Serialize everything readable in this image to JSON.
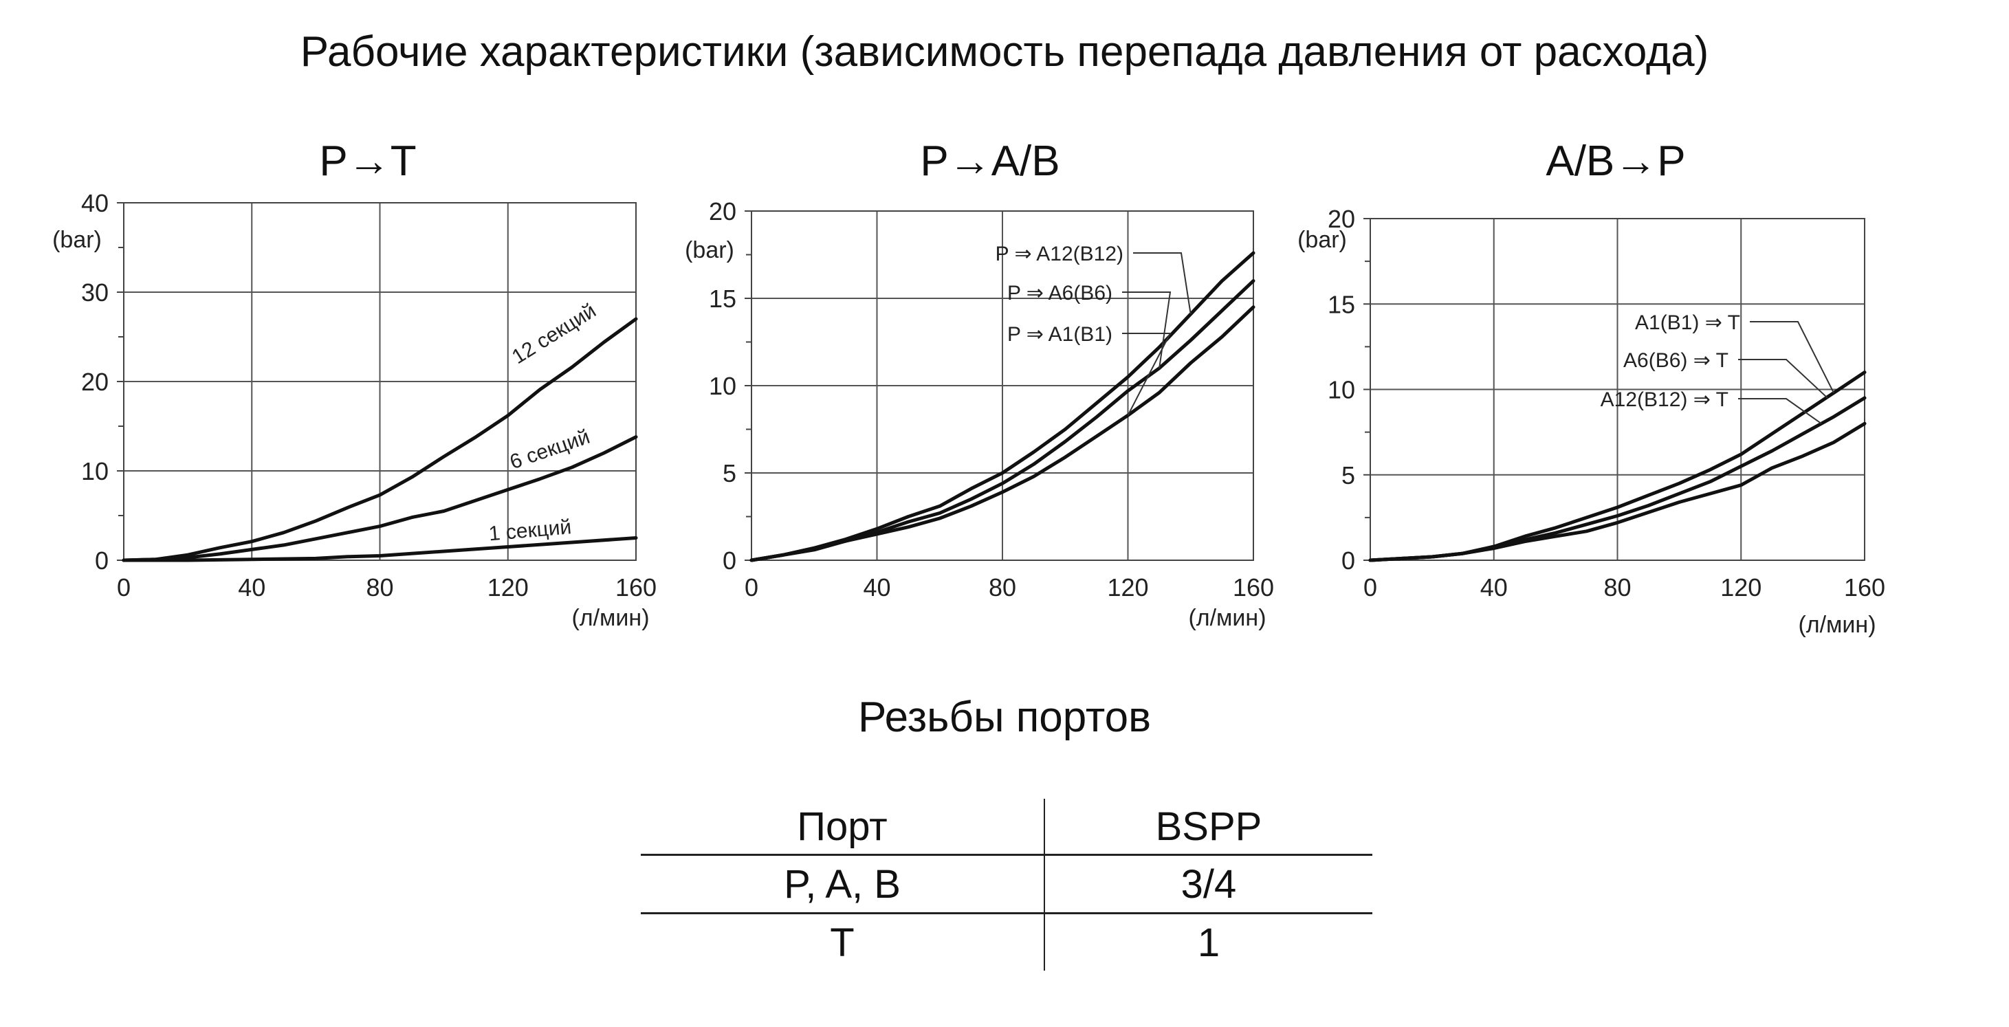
{
  "title": "Рабочие характеристики (зависимость перепада давления от расхода)",
  "chart_data": [
    {
      "type": "line",
      "title": "P→T",
      "ylabel": "(bar)",
      "xlabel": "(л/мин)",
      "xlim": [
        0,
        160
      ],
      "ylim": [
        0,
        40
      ],
      "xticks": [
        0,
        40,
        80,
        120,
        160
      ],
      "yticks": [
        0,
        10,
        20,
        30,
        40
      ],
      "grid": true,
      "series": [
        {
          "name": "12 секций",
          "x": [
            0,
            10,
            20,
            30,
            40,
            50,
            60,
            70,
            80,
            90,
            100,
            110,
            120,
            130,
            140,
            150,
            160
          ],
          "y": [
            0,
            0.1,
            0.6,
            1.4,
            2.1,
            3.1,
            4.4,
            5.9,
            7.3,
            9.3,
            11.6,
            13.8,
            16.2,
            19.1,
            21.6,
            24.4,
            27
          ]
        },
        {
          "name": "6 секций",
          "x": [
            0,
            10,
            20,
            30,
            40,
            50,
            60,
            70,
            80,
            90,
            100,
            110,
            120,
            130,
            140,
            150,
            160
          ],
          "y": [
            0,
            0.1,
            0.3,
            0.7,
            1.2,
            1.7,
            2.4,
            3.1,
            3.8,
            4.8,
            5.5,
            6.7,
            7.9,
            9.1,
            10.4,
            12,
            13.8
          ]
        },
        {
          "name": "1 секций",
          "x": [
            0,
            20,
            40,
            60,
            70,
            80,
            100,
            120,
            140,
            160
          ],
          "y": [
            0,
            0,
            0.1,
            0.2,
            0.4,
            0.5,
            1,
            1.5,
            2,
            2.5
          ]
        }
      ]
    },
    {
      "type": "line",
      "title": "P→A/B",
      "ylabel": "(bar)",
      "xlabel": "(л/мин)",
      "xlim": [
        0,
        160
      ],
      "ylim": [
        0,
        20
      ],
      "xticks": [
        0,
        40,
        80,
        120,
        160
      ],
      "yticks": [
        0,
        5,
        10,
        15,
        20
      ],
      "grid": true,
      "series": [
        {
          "name": "P ⇒ A12(B12)",
          "x": [
            0,
            10,
            20,
            30,
            40,
            50,
            60,
            70,
            80,
            90,
            100,
            110,
            120,
            130,
            140,
            150,
            160
          ],
          "y": [
            0,
            0.3,
            0.7,
            1.2,
            1.8,
            2.5,
            3.1,
            4.1,
            5,
            6.2,
            7.5,
            9,
            10.5,
            12.2,
            14.1,
            16,
            17.6
          ]
        },
        {
          "name": "P ⇒ A6(B6)",
          "x": [
            0,
            10,
            20,
            30,
            40,
            50,
            60,
            70,
            80,
            90,
            100,
            110,
            120,
            130,
            140,
            150,
            160
          ],
          "y": [
            0,
            0.3,
            0.7,
            1.1,
            1.6,
            2.2,
            2.7,
            3.5,
            4.4,
            5.5,
            6.8,
            8.2,
            9.7,
            11,
            12.6,
            14.3,
            16
          ]
        },
        {
          "name": "P ⇒ A1(B1)",
          "x": [
            0,
            10,
            20,
            30,
            40,
            50,
            60,
            70,
            80,
            90,
            100,
            110,
            120,
            130,
            140,
            150,
            160
          ],
          "y": [
            0,
            0.3,
            0.6,
            1.1,
            1.5,
            1.9,
            2.4,
            3.1,
            3.9,
            4.8,
            5.9,
            7.1,
            8.3,
            9.6,
            11.3,
            12.8,
            14.5
          ]
        }
      ]
    },
    {
      "type": "line",
      "title": "A/B→P",
      "ylabel": "(bar)",
      "xlabel": "(л/мин)",
      "xlim": [
        0,
        160
      ],
      "ylim": [
        0,
        20
      ],
      "xticks": [
        0,
        40,
        80,
        120,
        160
      ],
      "yticks": [
        0,
        5,
        10,
        15,
        20
      ],
      "grid": true,
      "series": [
        {
          "name": "A1(B1) ⇒ T",
          "x": [
            0,
            10,
            20,
            30,
            40,
            50,
            60,
            70,
            80,
            90,
            100,
            110,
            120,
            130,
            140,
            150,
            160
          ],
          "y": [
            0,
            0.1,
            0.2,
            0.4,
            0.8,
            1.4,
            1.9,
            2.5,
            3.1,
            3.8,
            4.5,
            5.3,
            6.2,
            7.4,
            8.6,
            9.8,
            11
          ]
        },
        {
          "name": "A6(B6) ⇒ T",
          "x": [
            0,
            10,
            20,
            30,
            40,
            50,
            60,
            70,
            80,
            90,
            100,
            110,
            120,
            130,
            140,
            150,
            160
          ],
          "y": [
            0,
            0.1,
            0.2,
            0.4,
            0.8,
            1.2,
            1.6,
            2.1,
            2.6,
            3.2,
            3.9,
            4.6,
            5.5,
            6.4,
            7.4,
            8.4,
            9.5
          ]
        },
        {
          "name": "A12(B12) ⇒ T",
          "x": [
            0,
            10,
            20,
            30,
            40,
            50,
            60,
            70,
            80,
            90,
            100,
            110,
            120,
            130,
            140,
            150,
            160
          ],
          "y": [
            0,
            0.1,
            0.2,
            0.4,
            0.7,
            1.1,
            1.4,
            1.7,
            2.2,
            2.8,
            3.4,
            3.9,
            4.4,
            5.4,
            6.1,
            6.9,
            8
          ]
        }
      ]
    }
  ],
  "ports_table": {
    "title": "Резьбы портов",
    "headers": [
      "Порт",
      "BSPP"
    ],
    "rows": [
      [
        "P, A, B",
        "3/4"
      ],
      [
        "T",
        "1"
      ]
    ]
  }
}
